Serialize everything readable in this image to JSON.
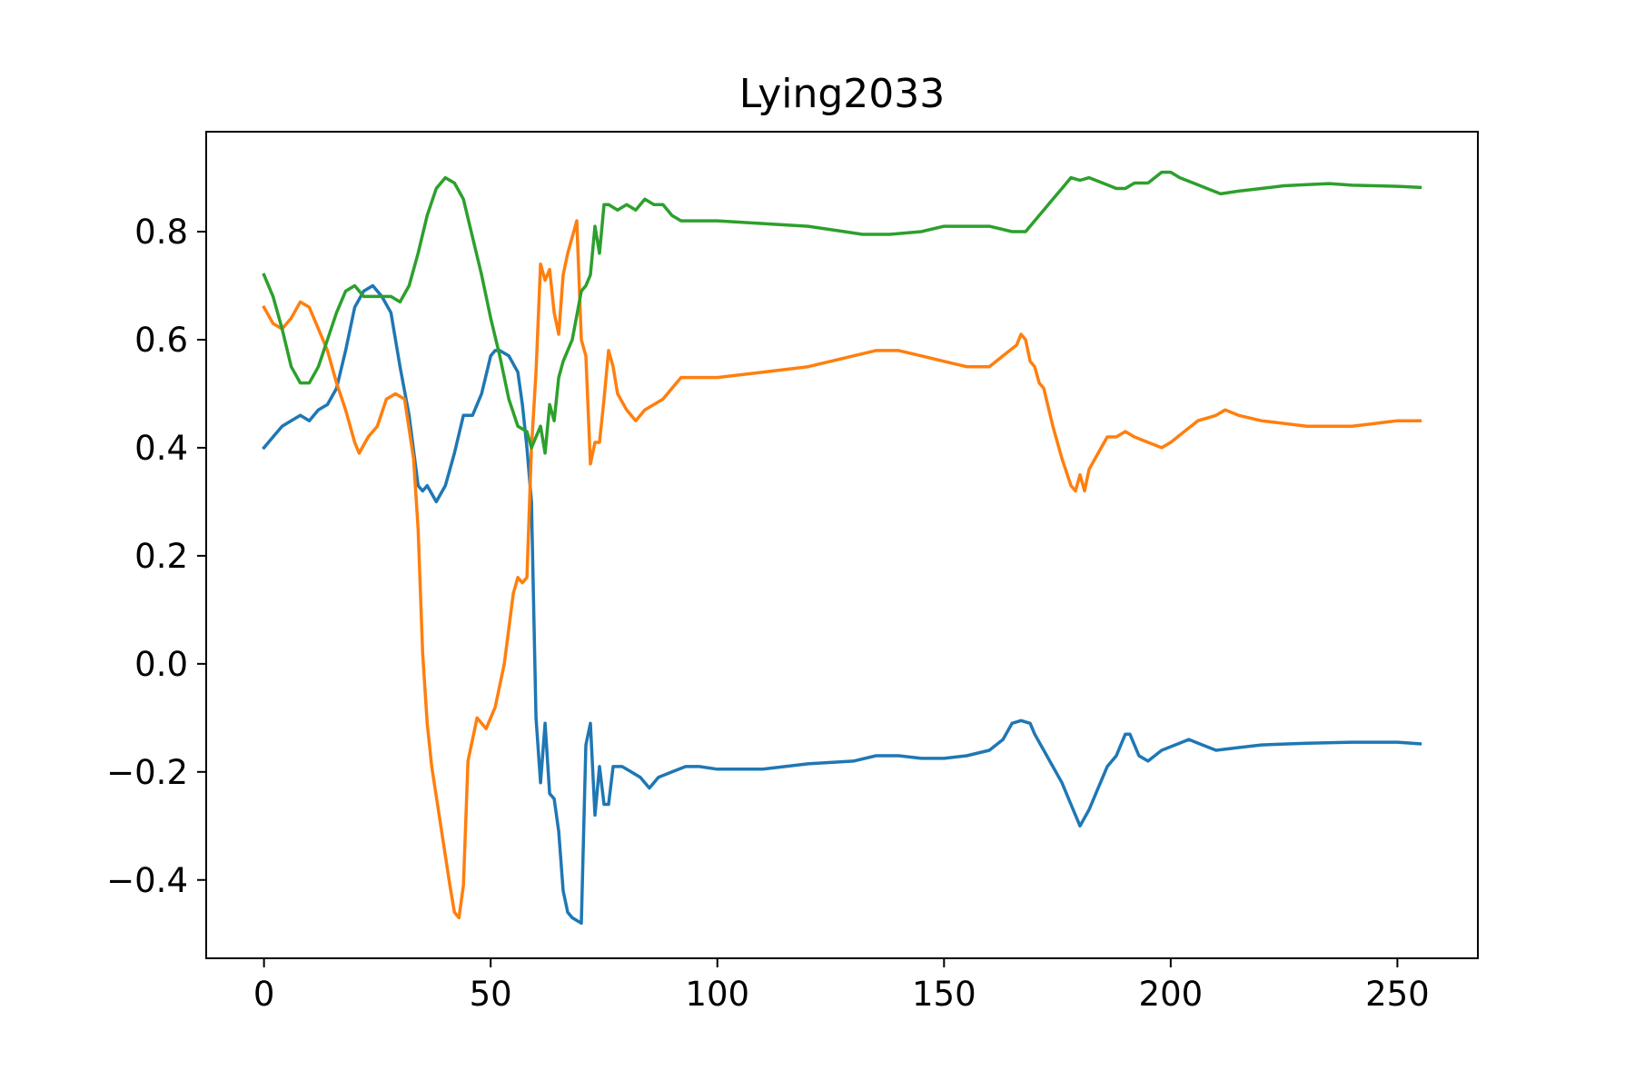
{
  "chart_data": {
    "type": "line",
    "title": "Lying2033",
    "xlabel": "",
    "ylabel": "",
    "xlim": [
      -12.75,
      267.75
    ],
    "ylim": [
      -0.545,
      0.985
    ],
    "x_ticks": [
      0,
      50,
      100,
      150,
      200,
      250
    ],
    "x_tick_labels": [
      "0",
      "50",
      "100",
      "150",
      "200",
      "250"
    ],
    "y_ticks": [
      -0.4,
      -0.2,
      0.0,
      0.2,
      0.4,
      0.6,
      0.8
    ],
    "y_tick_labels": [
      "−0.4",
      "−0.2",
      "0.0",
      "0.2",
      "0.4",
      "0.6",
      "0.8"
    ],
    "grid": false,
    "legend": "none",
    "series": [
      {
        "color": "#1f77b4",
        "points": [
          [
            0,
            0.4
          ],
          [
            2,
            0.42
          ],
          [
            4,
            0.44
          ],
          [
            6,
            0.45
          ],
          [
            8,
            0.46
          ],
          [
            10,
            0.45
          ],
          [
            12,
            0.47
          ],
          [
            14,
            0.48
          ],
          [
            16,
            0.51
          ],
          [
            18,
            0.58
          ],
          [
            20,
            0.66
          ],
          [
            22,
            0.69
          ],
          [
            24,
            0.7
          ],
          [
            26,
            0.68
          ],
          [
            28,
            0.65
          ],
          [
            30,
            0.55
          ],
          [
            32,
            0.46
          ],
          [
            34,
            0.33
          ],
          [
            35,
            0.32
          ],
          [
            36,
            0.33
          ],
          [
            38,
            0.3
          ],
          [
            40,
            0.33
          ],
          [
            42,
            0.39
          ],
          [
            44,
            0.46
          ],
          [
            46,
            0.46
          ],
          [
            48,
            0.5
          ],
          [
            50,
            0.57
          ],
          [
            51,
            0.58
          ],
          [
            52,
            0.58
          ],
          [
            54,
            0.57
          ],
          [
            56,
            0.54
          ],
          [
            57,
            0.48
          ],
          [
            58,
            0.4
          ],
          [
            59,
            0.3
          ],
          [
            60,
            -0.1
          ],
          [
            61,
            -0.22
          ],
          [
            62,
            -0.11
          ],
          [
            63,
            -0.24
          ],
          [
            64,
            -0.25
          ],
          [
            65,
            -0.31
          ],
          [
            66,
            -0.42
          ],
          [
            67,
            -0.46
          ],
          [
            68,
            -0.47
          ],
          [
            70,
            -0.48
          ],
          [
            71,
            -0.15
          ],
          [
            72,
            -0.11
          ],
          [
            73,
            -0.28
          ],
          [
            74,
            -0.19
          ],
          [
            75,
            -0.26
          ],
          [
            76,
            -0.26
          ],
          [
            77,
            -0.19
          ],
          [
            79,
            -0.19
          ],
          [
            81,
            -0.2
          ],
          [
            83,
            -0.21
          ],
          [
            85,
            -0.23
          ],
          [
            87,
            -0.21
          ],
          [
            90,
            -0.2
          ],
          [
            93,
            -0.19
          ],
          [
            96,
            -0.19
          ],
          [
            100,
            -0.195
          ],
          [
            110,
            -0.195
          ],
          [
            120,
            -0.185
          ],
          [
            130,
            -0.18
          ],
          [
            135,
            -0.17
          ],
          [
            140,
            -0.17
          ],
          [
            145,
            -0.175
          ],
          [
            150,
            -0.175
          ],
          [
            155,
            -0.17
          ],
          [
            160,
            -0.16
          ],
          [
            163,
            -0.14
          ],
          [
            165,
            -0.11
          ],
          [
            167,
            -0.105
          ],
          [
            169,
            -0.11
          ],
          [
            170,
            -0.13
          ],
          [
            172,
            -0.16
          ],
          [
            174,
            -0.19
          ],
          [
            176,
            -0.22
          ],
          [
            178,
            -0.26
          ],
          [
            180,
            -0.3
          ],
          [
            182,
            -0.27
          ],
          [
            184,
            -0.23
          ],
          [
            186,
            -0.19
          ],
          [
            188,
            -0.17
          ],
          [
            190,
            -0.13
          ],
          [
            191,
            -0.13
          ],
          [
            193,
            -0.17
          ],
          [
            195,
            -0.18
          ],
          [
            198,
            -0.16
          ],
          [
            201,
            -0.15
          ],
          [
            204,
            -0.14
          ],
          [
            207,
            -0.15
          ],
          [
            210,
            -0.16
          ],
          [
            215,
            -0.155
          ],
          [
            220,
            -0.15
          ],
          [
            230,
            -0.147
          ],
          [
            240,
            -0.145
          ],
          [
            250,
            -0.145
          ],
          [
            255,
            -0.148
          ]
        ]
      },
      {
        "color": "#ff7f0e",
        "points": [
          [
            0,
            0.66
          ],
          [
            2,
            0.63
          ],
          [
            4,
            0.62
          ],
          [
            6,
            0.64
          ],
          [
            8,
            0.67
          ],
          [
            10,
            0.66
          ],
          [
            12,
            0.62
          ],
          [
            14,
            0.58
          ],
          [
            16,
            0.52
          ],
          [
            18,
            0.47
          ],
          [
            20,
            0.41
          ],
          [
            21,
            0.39
          ],
          [
            23,
            0.42
          ],
          [
            25,
            0.44
          ],
          [
            27,
            0.49
          ],
          [
            29,
            0.5
          ],
          [
            31,
            0.49
          ],
          [
            33,
            0.38
          ],
          [
            34,
            0.25
          ],
          [
            35,
            0.02
          ],
          [
            36,
            -0.11
          ],
          [
            37,
            -0.19
          ],
          [
            39,
            -0.3
          ],
          [
            41,
            -0.41
          ],
          [
            42,
            -0.46
          ],
          [
            43,
            -0.47
          ],
          [
            44,
            -0.41
          ],
          [
            45,
            -0.18
          ],
          [
            46,
            -0.14
          ],
          [
            47,
            -0.1
          ],
          [
            49,
            -0.12
          ],
          [
            51,
            -0.08
          ],
          [
            53,
            0.0
          ],
          [
            55,
            0.13
          ],
          [
            56,
            0.16
          ],
          [
            57,
            0.15
          ],
          [
            58,
            0.16
          ],
          [
            59,
            0.4
          ],
          [
            60,
            0.54
          ],
          [
            61,
            0.74
          ],
          [
            62,
            0.71
          ],
          [
            63,
            0.73
          ],
          [
            64,
            0.65
          ],
          [
            65,
            0.61
          ],
          [
            66,
            0.72
          ],
          [
            67,
            0.76
          ],
          [
            68,
            0.79
          ],
          [
            69,
            0.82
          ],
          [
            70,
            0.6
          ],
          [
            71,
            0.57
          ],
          [
            72,
            0.37
          ],
          [
            73,
            0.41
          ],
          [
            74,
            0.41
          ],
          [
            75,
            0.49
          ],
          [
            76,
            0.58
          ],
          [
            77,
            0.55
          ],
          [
            78,
            0.5
          ],
          [
            80,
            0.47
          ],
          [
            82,
            0.45
          ],
          [
            84,
            0.47
          ],
          [
            86,
            0.48
          ],
          [
            88,
            0.49
          ],
          [
            90,
            0.51
          ],
          [
            92,
            0.53
          ],
          [
            95,
            0.53
          ],
          [
            100,
            0.53
          ],
          [
            110,
            0.54
          ],
          [
            120,
            0.55
          ],
          [
            130,
            0.57
          ],
          [
            135,
            0.58
          ],
          [
            140,
            0.58
          ],
          [
            145,
            0.57
          ],
          [
            150,
            0.56
          ],
          [
            155,
            0.55
          ],
          [
            160,
            0.55
          ],
          [
            163,
            0.57
          ],
          [
            166,
            0.59
          ],
          [
            167,
            0.61
          ],
          [
            168,
            0.6
          ],
          [
            169,
            0.56
          ],
          [
            170,
            0.55
          ],
          [
            171,
            0.52
          ],
          [
            172,
            0.51
          ],
          [
            174,
            0.44
          ],
          [
            176,
            0.38
          ],
          [
            178,
            0.33
          ],
          [
            179,
            0.32
          ],
          [
            180,
            0.35
          ],
          [
            181,
            0.32
          ],
          [
            182,
            0.36
          ],
          [
            184,
            0.39
          ],
          [
            186,
            0.42
          ],
          [
            188,
            0.42
          ],
          [
            190,
            0.43
          ],
          [
            192,
            0.42
          ],
          [
            195,
            0.41
          ],
          [
            198,
            0.4
          ],
          [
            200,
            0.41
          ],
          [
            203,
            0.43
          ],
          [
            206,
            0.45
          ],
          [
            210,
            0.46
          ],
          [
            212,
            0.47
          ],
          [
            215,
            0.46
          ],
          [
            220,
            0.45
          ],
          [
            225,
            0.445
          ],
          [
            230,
            0.44
          ],
          [
            235,
            0.44
          ],
          [
            240,
            0.44
          ],
          [
            245,
            0.445
          ],
          [
            250,
            0.45
          ],
          [
            255,
            0.45
          ]
        ]
      },
      {
        "color": "#2ca02c",
        "points": [
          [
            0,
            0.72
          ],
          [
            2,
            0.68
          ],
          [
            4,
            0.62
          ],
          [
            6,
            0.55
          ],
          [
            8,
            0.52
          ],
          [
            10,
            0.52
          ],
          [
            12,
            0.55
          ],
          [
            14,
            0.6
          ],
          [
            16,
            0.65
          ],
          [
            18,
            0.69
          ],
          [
            20,
            0.7
          ],
          [
            22,
            0.68
          ],
          [
            24,
            0.68
          ],
          [
            26,
            0.68
          ],
          [
            28,
            0.68
          ],
          [
            30,
            0.67
          ],
          [
            32,
            0.7
          ],
          [
            34,
            0.76
          ],
          [
            36,
            0.83
          ],
          [
            38,
            0.88
          ],
          [
            40,
            0.9
          ],
          [
            42,
            0.89
          ],
          [
            44,
            0.86
          ],
          [
            46,
            0.79
          ],
          [
            48,
            0.72
          ],
          [
            50,
            0.64
          ],
          [
            52,
            0.57
          ],
          [
            54,
            0.49
          ],
          [
            56,
            0.44
          ],
          [
            58,
            0.43
          ],
          [
            59,
            0.4
          ],
          [
            60,
            0.42
          ],
          [
            61,
            0.44
          ],
          [
            62,
            0.39
          ],
          [
            63,
            0.48
          ],
          [
            64,
            0.45
          ],
          [
            65,
            0.53
          ],
          [
            66,
            0.56
          ],
          [
            68,
            0.6
          ],
          [
            70,
            0.69
          ],
          [
            71,
            0.7
          ],
          [
            72,
            0.72
          ],
          [
            73,
            0.81
          ],
          [
            74,
            0.76
          ],
          [
            75,
            0.85
          ],
          [
            76,
            0.85
          ],
          [
            78,
            0.84
          ],
          [
            80,
            0.85
          ],
          [
            82,
            0.84
          ],
          [
            84,
            0.86
          ],
          [
            86,
            0.85
          ],
          [
            88,
            0.85
          ],
          [
            90,
            0.83
          ],
          [
            92,
            0.82
          ],
          [
            95,
            0.82
          ],
          [
            100,
            0.82
          ],
          [
            110,
            0.815
          ],
          [
            120,
            0.81
          ],
          [
            128,
            0.8
          ],
          [
            132,
            0.795
          ],
          [
            138,
            0.795
          ],
          [
            145,
            0.8
          ],
          [
            150,
            0.81
          ],
          [
            155,
            0.81
          ],
          [
            160,
            0.81
          ],
          [
            165,
            0.8
          ],
          [
            168,
            0.8
          ],
          [
            170,
            0.82
          ],
          [
            172,
            0.84
          ],
          [
            174,
            0.86
          ],
          [
            176,
            0.88
          ],
          [
            178,
            0.9
          ],
          [
            180,
            0.895
          ],
          [
            182,
            0.9
          ],
          [
            185,
            0.89
          ],
          [
            188,
            0.88
          ],
          [
            190,
            0.88
          ],
          [
            192,
            0.89
          ],
          [
            195,
            0.89
          ],
          [
            198,
            0.91
          ],
          [
            200,
            0.91
          ],
          [
            202,
            0.9
          ],
          [
            205,
            0.89
          ],
          [
            208,
            0.88
          ],
          [
            211,
            0.87
          ],
          [
            215,
            0.875
          ],
          [
            220,
            0.88
          ],
          [
            225,
            0.885
          ],
          [
            230,
            0.887
          ],
          [
            235,
            0.889
          ],
          [
            240,
            0.886
          ],
          [
            245,
            0.885
          ],
          [
            250,
            0.884
          ],
          [
            255,
            0.882
          ]
        ]
      }
    ]
  }
}
